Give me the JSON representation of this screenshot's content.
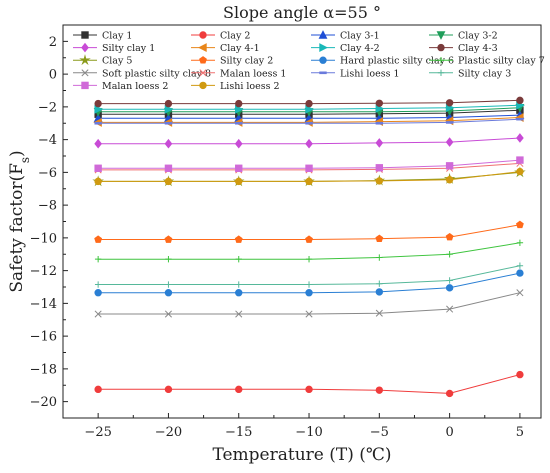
{
  "chart_data": {
    "type": "line",
    "title": "Slope angle α=55 °",
    "xlabel": "Temperature (T) (℃)",
    "ylabel_main": "Safety factor(F",
    "ylabel_sub": "s",
    "ylabel_close": ")",
    "xlim": [
      -27.5,
      6.5
    ],
    "ylim": [
      -21,
      3
    ],
    "xticks": [
      -25,
      -20,
      -15,
      -10,
      -5,
      0,
      5
    ],
    "yticks": [
      -20,
      -18,
      -16,
      -14,
      -12,
      -10,
      -8,
      -6,
      -4,
      -2,
      0,
      2
    ],
    "x": [
      -25,
      -20,
      -15,
      -10,
      -5,
      0,
      5
    ],
    "series": [
      {
        "name": "Clay 1",
        "color": "#333333",
        "marker": "square",
        "values": [
          -2.45,
          -2.45,
          -2.45,
          -2.45,
          -2.42,
          -2.38,
          -2.2
        ]
      },
      {
        "name": "Clay 2",
        "color": "#f03c3c",
        "marker": "circle",
        "values": [
          -19.25,
          -19.25,
          -19.25,
          -19.25,
          -19.3,
          -19.5,
          -18.35
        ]
      },
      {
        "name": "Clay 3-1",
        "color": "#1f4fd6",
        "marker": "triangle-up",
        "values": [
          -2.7,
          -2.7,
          -2.7,
          -2.7,
          -2.7,
          -2.65,
          -2.5
        ]
      },
      {
        "name": "Clay 3-2",
        "color": "#1f9e5a",
        "marker": "triangle-down",
        "values": [
          -2.3,
          -2.3,
          -2.3,
          -2.3,
          -2.3,
          -2.25,
          -2.05
        ]
      },
      {
        "name": "Silty clay 1",
        "color": "#c84bd6",
        "marker": "diamond",
        "values": [
          -4.25,
          -4.25,
          -4.25,
          -4.25,
          -4.2,
          -4.15,
          -3.9
        ]
      },
      {
        "name": "Clay 4-1",
        "color": "#e8861a",
        "marker": "triangle-left",
        "values": [
          -2.95,
          -2.95,
          -2.95,
          -2.95,
          -2.9,
          -2.85,
          -2.65
        ]
      },
      {
        "name": "Clay 4-2",
        "color": "#1ab8b8",
        "marker": "triangle-right",
        "values": [
          -2.15,
          -2.15,
          -2.15,
          -2.15,
          -2.1,
          -2.05,
          -1.9
        ]
      },
      {
        "name": "Clay 4-3",
        "color": "#7a3b3b",
        "marker": "hexagon",
        "values": [
          -1.8,
          -1.8,
          -1.8,
          -1.8,
          -1.78,
          -1.75,
          -1.6
        ]
      },
      {
        "name": "Clay 5",
        "color": "#8a9a1a",
        "marker": "star",
        "values": [
          -6.55,
          -6.55,
          -6.55,
          -6.55,
          -6.5,
          -6.4,
          -6.0
        ]
      },
      {
        "name": "Silty clay 2",
        "color": "#ff6a1a",
        "marker": "pentagon",
        "values": [
          -10.1,
          -10.1,
          -10.1,
          -10.1,
          -10.05,
          -9.95,
          -9.2
        ]
      },
      {
        "name": "Hard plastic silty clay 6",
        "color": "#2a7fd4",
        "marker": "circle-half",
        "values": [
          -13.35,
          -13.35,
          -13.35,
          -13.35,
          -13.3,
          -13.05,
          -12.15
        ]
      },
      {
        "name": "Plastic silty clay 7",
        "color": "#3ec43e",
        "marker": "plus",
        "values": [
          -11.3,
          -11.3,
          -11.3,
          -11.3,
          -11.2,
          -11.0,
          -10.3
        ]
      },
      {
        "name": "Soft plastic silty clay 8",
        "color": "#888888",
        "marker": "x",
        "values": [
          -14.65,
          -14.65,
          -14.65,
          -14.65,
          -14.6,
          -14.35,
          -13.35
        ]
      },
      {
        "name": "Malan loess 1",
        "color": "#f07070",
        "marker": "x",
        "values": [
          -5.85,
          -5.85,
          -5.85,
          -5.85,
          -5.82,
          -5.75,
          -5.45
        ]
      },
      {
        "name": "Lishi loess 1",
        "color": "#6a7adc",
        "marker": "dash",
        "values": [
          -3.0,
          -3.0,
          -3.0,
          -3.0,
          -3.0,
          -2.95,
          -2.75
        ]
      },
      {
        "name": "Silty clay 3",
        "color": "#56b89a",
        "marker": "plus",
        "values": [
          -12.85,
          -12.85,
          -12.85,
          -12.85,
          -12.8,
          -12.6,
          -11.7
        ]
      },
      {
        "name": "Malan loess 2",
        "color": "#d06ad8",
        "marker": "square",
        "values": [
          -5.75,
          -5.75,
          -5.75,
          -5.75,
          -5.72,
          -5.6,
          -5.25
        ]
      },
      {
        "name": "Lishi loess 2",
        "color": "#d09a10",
        "marker": "circle",
        "values": [
          -6.55,
          -6.55,
          -6.55,
          -6.55,
          -6.52,
          -6.45,
          -5.95
        ]
      }
    ],
    "legend_position": "top, inside plot, 4 columns",
    "grid": false
  }
}
